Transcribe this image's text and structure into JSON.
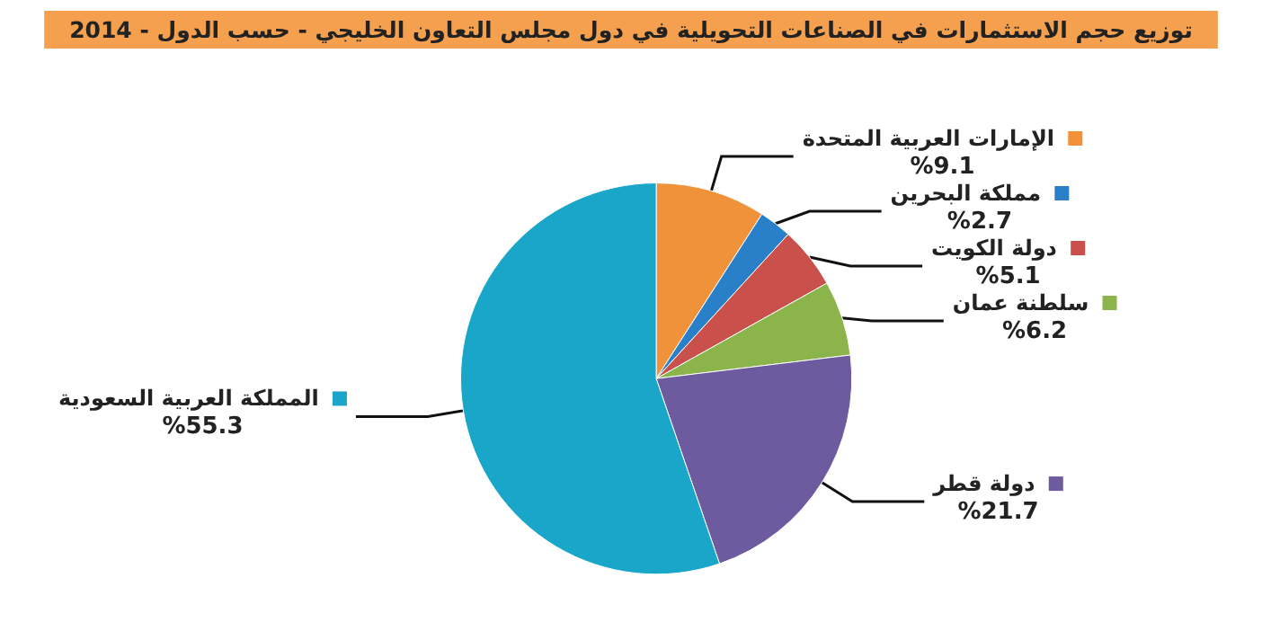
{
  "chart_data": {
    "type": "pie",
    "title": "توزيع حجم الاستثمارات في الصناعات التحويلية في دول مجلس التعاون الخليجي - حسب الدول - 2014",
    "categories": [
      "الإمارات العربية المتحدة",
      "مملكة البحرين",
      "دولة الكويت",
      "سلطنة عمان",
      "دولة قطر",
      "المملكة العربية السعودية"
    ],
    "values": [
      9.1,
      2.7,
      5.1,
      6.2,
      21.7,
      55.3
    ],
    "value_labels": [
      "%9.1",
      "%2.7",
      "%5.1",
      "%6.2",
      "%21.7",
      "%55.3"
    ],
    "colors": [
      "#f0923a",
      "#2a7fc9",
      "#c9504b",
      "#8bb54a",
      "#6e5a9e",
      "#1aa6c8"
    ],
    "legend": "top left"
  }
}
